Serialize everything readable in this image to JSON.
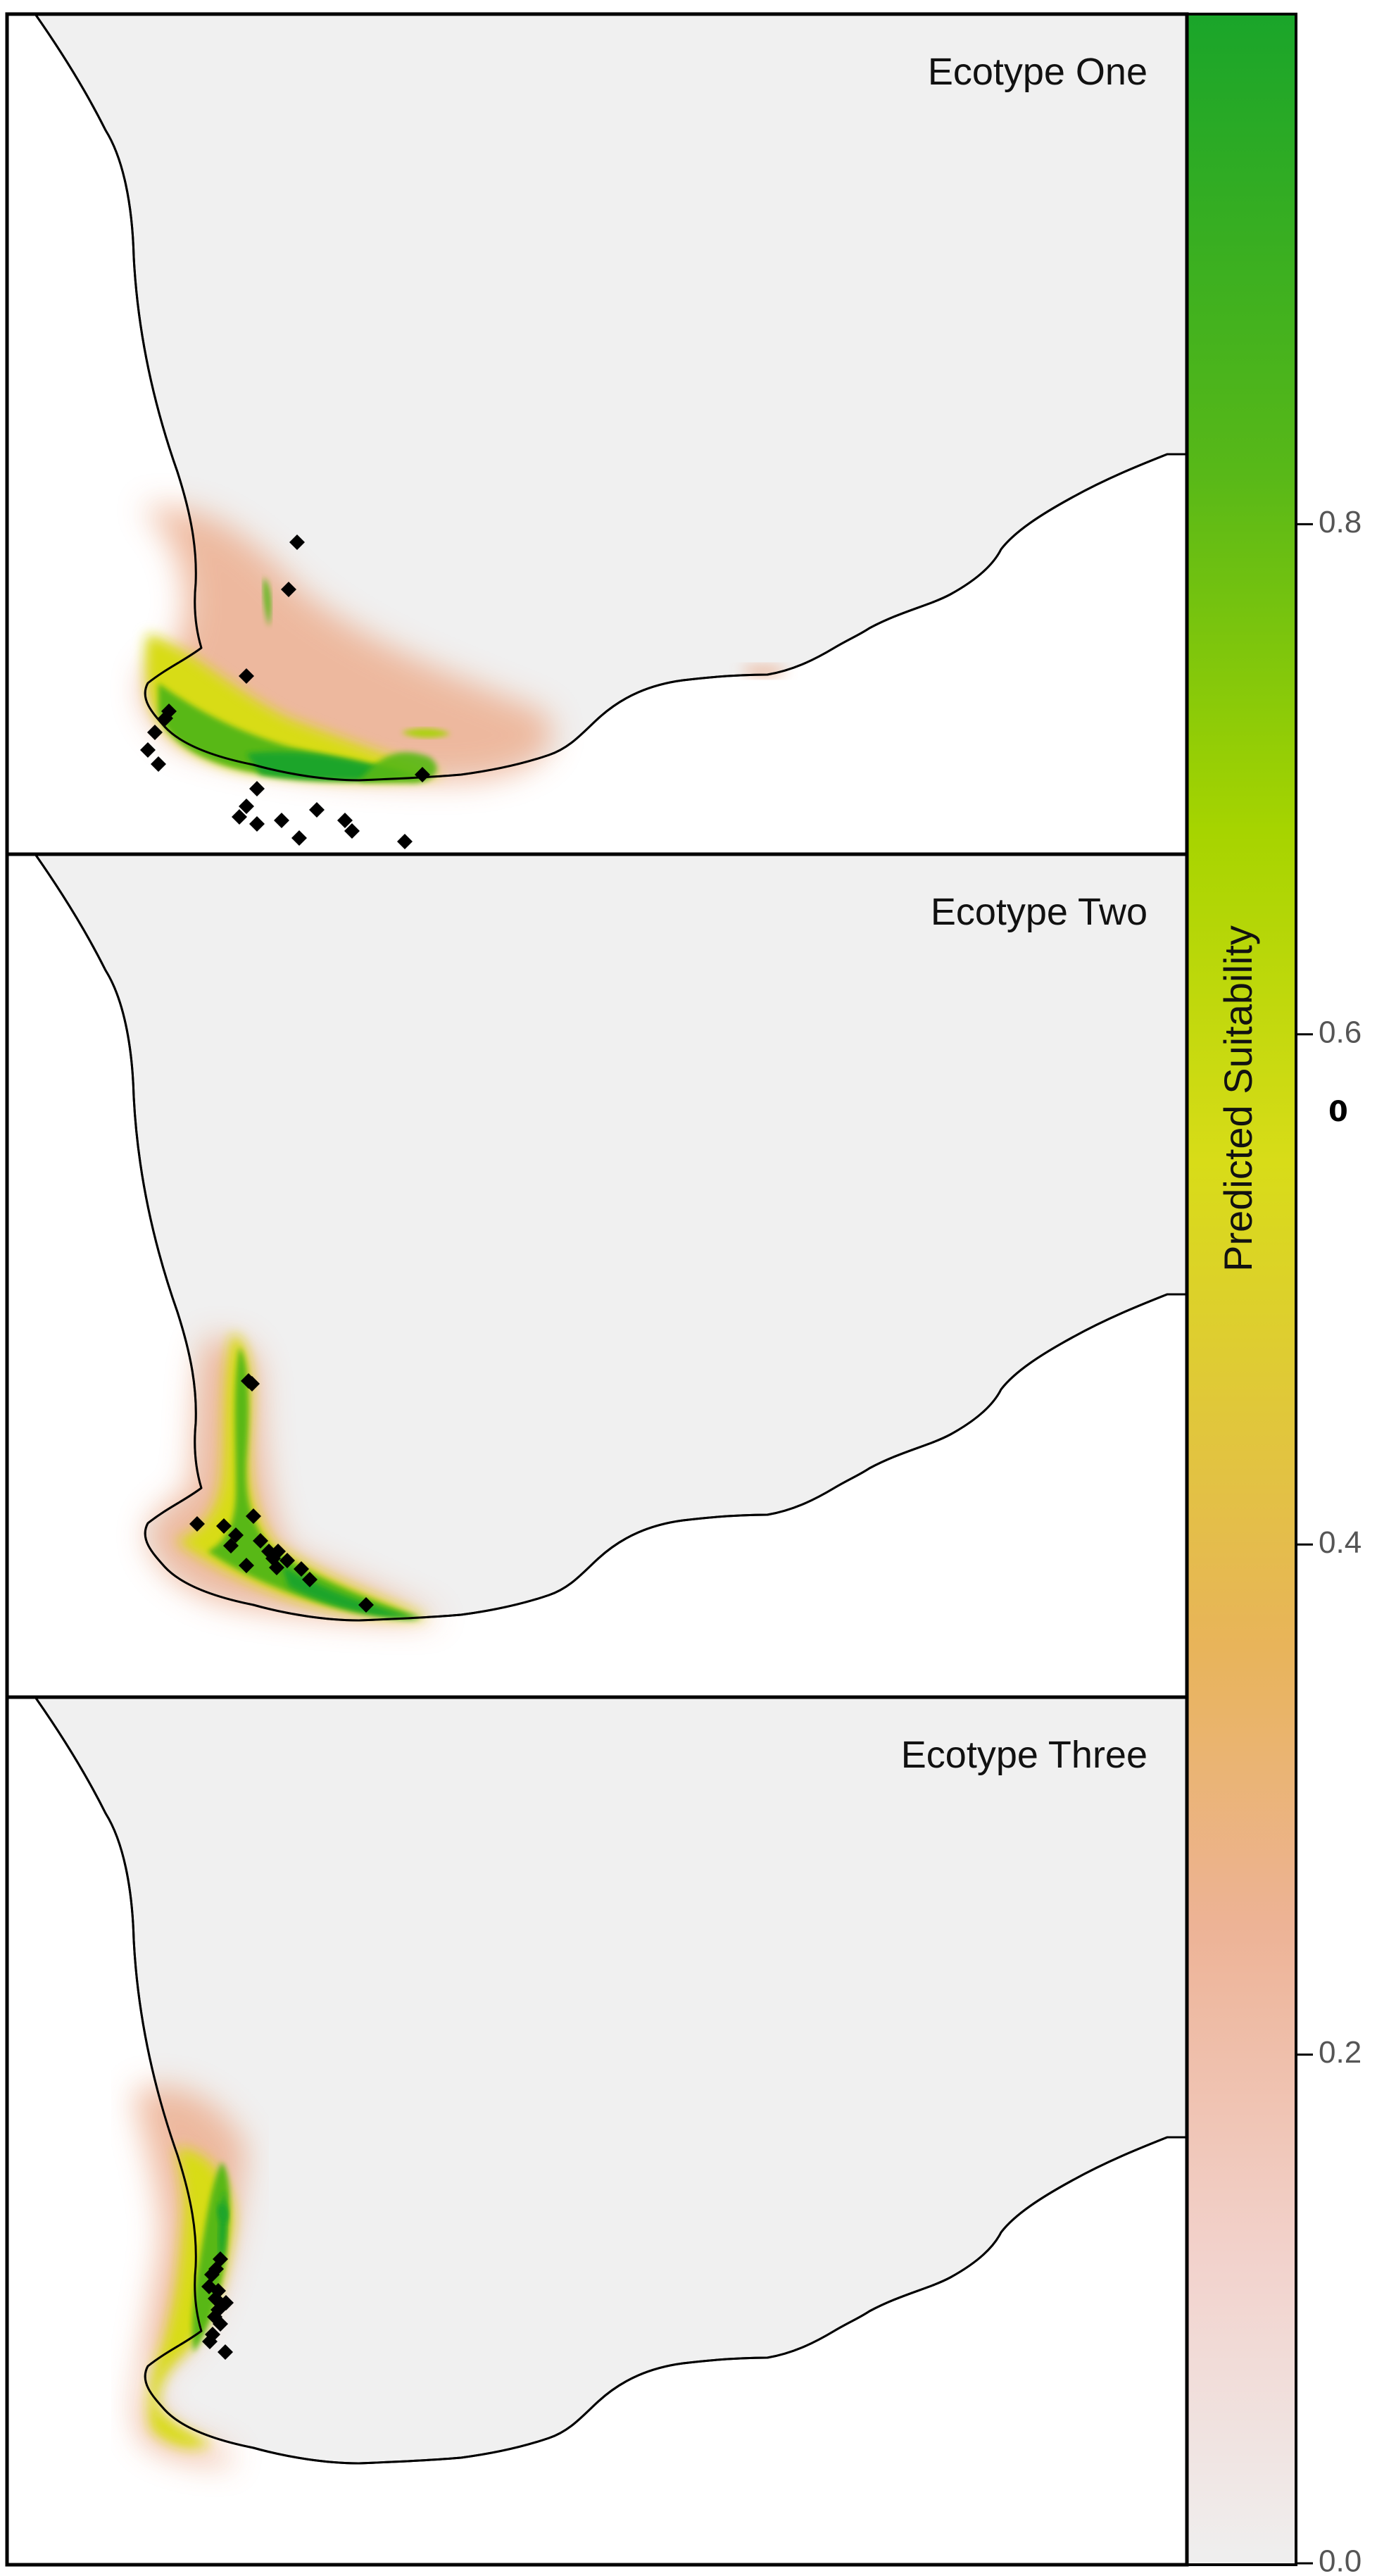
{
  "colors": {
    "low": "#efefef",
    "pale_pink": "#f2d2cc",
    "salmon": "#edb396",
    "orange": "#e8b45a",
    "yellow": "#d8dc18",
    "yellow_green": "#a6d400",
    "green": "#58b818",
    "dark_green": "#1aa52a"
  },
  "panels": [
    {
      "title": "Ecotype One",
      "icon": "occurrence-diamond-icon"
    },
    {
      "title": "Ecotype Two",
      "icon": "occurrence-diamond-icon"
    },
    {
      "title": "Ecotype Three",
      "icon": "occurrence-diamond-icon"
    }
  ],
  "colorbar": {
    "title": "Predicted Suitability",
    "range": [
      0.0,
      1.0
    ],
    "ticks": [
      {
        "value": 0.0,
        "label": "0.0"
      },
      {
        "value": 0.2,
        "label": "0.2"
      },
      {
        "value": 0.4,
        "label": "0.4"
      },
      {
        "value": 0.6,
        "label": "0.6"
      },
      {
        "value": 0.8,
        "label": "0.8"
      }
    ],
    "stray_mark": "0"
  }
}
